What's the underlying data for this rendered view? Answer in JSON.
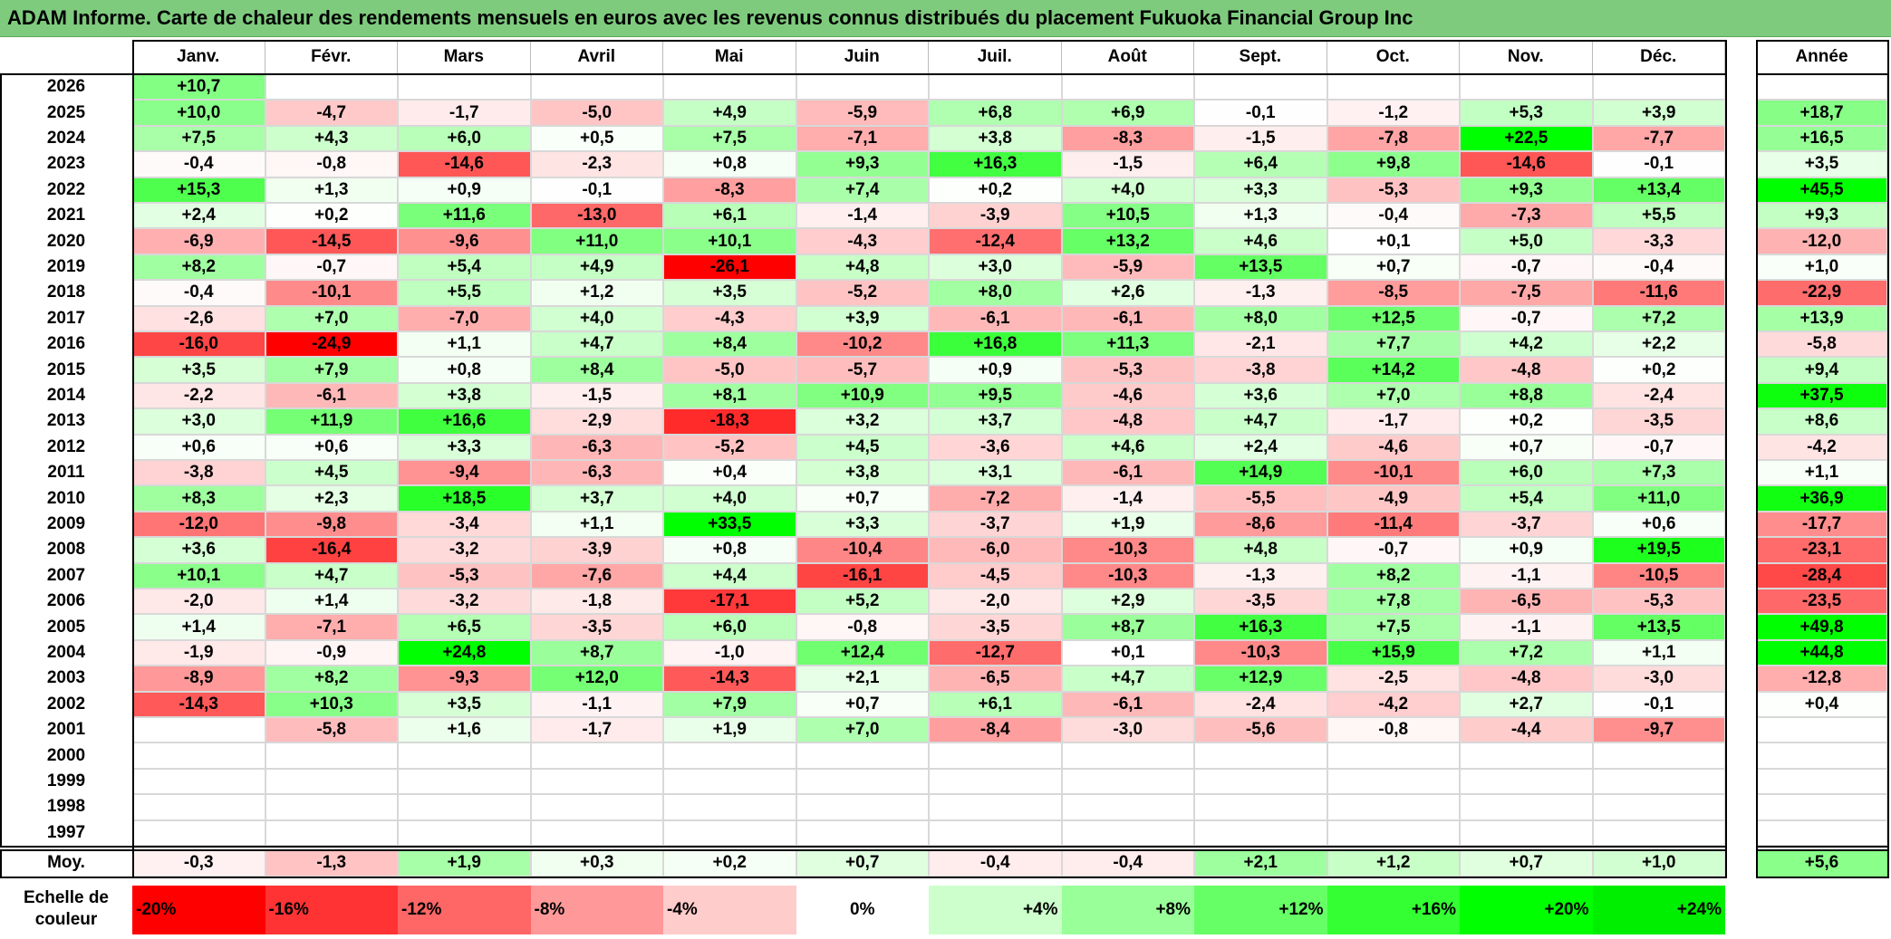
{
  "title": "ADAM Informe. Carte de chaleur des rendements mensuels en euros avec les revenus connus distribués du placement Fukuoka Financial Group Inc",
  "chart_data": {
    "type": "heatmap",
    "months": [
      "Janv.",
      "Févr.",
      "Mars",
      "Avril",
      "Mai",
      "Juin",
      "Juil.",
      "Août",
      "Sept.",
      "Oct.",
      "Nov.",
      "Déc."
    ],
    "year_header": "Année",
    "rows": [
      {
        "year": "2026",
        "m": [
          "+10,7",
          null,
          null,
          null,
          null,
          null,
          null,
          null,
          null,
          null,
          null,
          null
        ],
        "y": null
      },
      {
        "year": "2025",
        "m": [
          "+10,0",
          "-4,7",
          "-1,7",
          "-5,0",
          "+4,9",
          "-5,9",
          "+6,8",
          "+6,9",
          "-0,1",
          "-1,2",
          "+5,3",
          "+3,9"
        ],
        "y": "+18,7"
      },
      {
        "year": "2024",
        "m": [
          "+7,5",
          "+4,3",
          "+6,0",
          "+0,5",
          "+7,5",
          "-7,1",
          "+3,8",
          "-8,3",
          "-1,5",
          "-7,8",
          "+22,5",
          "-7,7"
        ],
        "y": "+16,5"
      },
      {
        "year": "2023",
        "m": [
          "-0,4",
          "-0,8",
          "-14,6",
          "-2,3",
          "+0,8",
          "+9,3",
          "+16,3",
          "-1,5",
          "+6,4",
          "+9,8",
          "-14,6",
          "-0,1"
        ],
        "y": "+3,5"
      },
      {
        "year": "2022",
        "m": [
          "+15,3",
          "+1,3",
          "+0,9",
          "-0,1",
          "-8,3",
          "+7,4",
          "+0,2",
          "+4,0",
          "+3,3",
          "-5,3",
          "+9,3",
          "+13,4"
        ],
        "y": "+45,5"
      },
      {
        "year": "2021",
        "m": [
          "+2,4",
          "+0,2",
          "+11,6",
          "-13,0",
          "+6,1",
          "-1,4",
          "-3,9",
          "+10,5",
          "+1,3",
          "-0,4",
          "-7,3",
          "+5,5"
        ],
        "y": "+9,3"
      },
      {
        "year": "2020",
        "m": [
          "-6,9",
          "-14,5",
          "-9,6",
          "+11,0",
          "+10,1",
          "-4,3",
          "-12,4",
          "+13,2",
          "+4,6",
          "+0,1",
          "+5,0",
          "-3,3"
        ],
        "y": "-12,0"
      },
      {
        "year": "2019",
        "m": [
          "+8,2",
          "-0,7",
          "+5,4",
          "+4,9",
          "-26,1",
          "+4,8",
          "+3,0",
          "-5,9",
          "+13,5",
          "+0,7",
          "-0,7",
          "-0,4"
        ],
        "y": "+1,0"
      },
      {
        "year": "2018",
        "m": [
          "-0,4",
          "-10,1",
          "+5,5",
          "+1,2",
          "+3,5",
          "-5,2",
          "+8,0",
          "+2,6",
          "-1,3",
          "-8,5",
          "-7,5",
          "-11,6"
        ],
        "y": "-22,9"
      },
      {
        "year": "2017",
        "m": [
          "-2,6",
          "+7,0",
          "-7,0",
          "+4,0",
          "-4,3",
          "+3,9",
          "-6,1",
          "-6,1",
          "+8,0",
          "+12,5",
          "-0,7",
          "+7,2"
        ],
        "y": "+13,9"
      },
      {
        "year": "2016",
        "m": [
          "-16,0",
          "-24,9",
          "+1,1",
          "+4,7",
          "+8,4",
          "-10,2",
          "+16,8",
          "+11,3",
          "-2,1",
          "+7,7",
          "+4,2",
          "+2,2"
        ],
        "y": "-5,8"
      },
      {
        "year": "2015",
        "m": [
          "+3,5",
          "+7,9",
          "+0,8",
          "+8,4",
          "-5,0",
          "-5,7",
          "+0,9",
          "-5,3",
          "-3,8",
          "+14,2",
          "-4,8",
          "+0,2"
        ],
        "y": "+9,4"
      },
      {
        "year": "2014",
        "m": [
          "-2,2",
          "-6,1",
          "+3,8",
          "-1,5",
          "+8,1",
          "+10,9",
          "+9,5",
          "-4,6",
          "+3,6",
          "+7,0",
          "+8,8",
          "-2,4"
        ],
        "y": "+37,5"
      },
      {
        "year": "2013",
        "m": [
          "+3,0",
          "+11,9",
          "+16,6",
          "-2,9",
          "-18,3",
          "+3,2",
          "+3,7",
          "-4,8",
          "+4,7",
          "-1,7",
          "+0,2",
          "-3,5"
        ],
        "y": "+8,6"
      },
      {
        "year": "2012",
        "m": [
          "+0,6",
          "+0,6",
          "+3,3",
          "-6,3",
          "-5,2",
          "+4,5",
          "-3,6",
          "+4,6",
          "+2,4",
          "-4,6",
          "+0,7",
          "-0,7"
        ],
        "y": "-4,2"
      },
      {
        "year": "2011",
        "m": [
          "-3,8",
          "+4,5",
          "-9,4",
          "-6,3",
          "+0,4",
          "+3,8",
          "+3,1",
          "-6,1",
          "+14,9",
          "-10,1",
          "+6,0",
          "+7,3"
        ],
        "y": "+1,1"
      },
      {
        "year": "2010",
        "m": [
          "+8,3",
          "+2,3",
          "+18,5",
          "+3,7",
          "+4,0",
          "+0,7",
          "-7,2",
          "-1,4",
          "-5,5",
          "-4,9",
          "+5,4",
          "+11,0"
        ],
        "y": "+36,9"
      },
      {
        "year": "2009",
        "m": [
          "-12,0",
          "-9,8",
          "-3,4",
          "+1,1",
          "+33,5",
          "+3,3",
          "-3,7",
          "+1,9",
          "-8,6",
          "-11,4",
          "-3,7",
          "+0,6"
        ],
        "y": "-17,7"
      },
      {
        "year": "2008",
        "m": [
          "+3,6",
          "-16,4",
          "-3,2",
          "-3,9",
          "+0,8",
          "-10,4",
          "-6,0",
          "-10,3",
          "+4,8",
          "-0,7",
          "+0,9",
          "+19,5"
        ],
        "y": "-23,1"
      },
      {
        "year": "2007",
        "m": [
          "+10,1",
          "+4,7",
          "-5,3",
          "-7,6",
          "+4,4",
          "-16,1",
          "-4,5",
          "-10,3",
          "-1,3",
          "+8,2",
          "-1,1",
          "-10,5"
        ],
        "y": "-28,4"
      },
      {
        "year": "2006",
        "m": [
          "-2,0",
          "+1,4",
          "-3,2",
          "-1,8",
          "-17,1",
          "+5,2",
          "-2,0",
          "+2,9",
          "-3,5",
          "+7,8",
          "-6,5",
          "-5,3"
        ],
        "y": "-23,5"
      },
      {
        "year": "2005",
        "m": [
          "+1,4",
          "-7,1",
          "+6,5",
          "-3,5",
          "+6,0",
          "-0,8",
          "-3,5",
          "+8,7",
          "+16,3",
          "+7,5",
          "-1,1",
          "+13,5"
        ],
        "y": "+49,8"
      },
      {
        "year": "2004",
        "m": [
          "-1,9",
          "-0,9",
          "+24,8",
          "+8,7",
          "-1,0",
          "+12,4",
          "-12,7",
          "+0,1",
          "-10,3",
          "+15,9",
          "+7,2",
          "+1,1"
        ],
        "y": "+44,8"
      },
      {
        "year": "2003",
        "m": [
          "-8,9",
          "+8,2",
          "-9,3",
          "+12,0",
          "-14,3",
          "+2,1",
          "-6,5",
          "+4,7",
          "+12,9",
          "-2,5",
          "-4,8",
          "-3,0"
        ],
        "y": "-12,8"
      },
      {
        "year": "2002",
        "m": [
          "-14,3",
          "+10,3",
          "+3,5",
          "-1,1",
          "+7,9",
          "+0,7",
          "+6,1",
          "-6,1",
          "-2,4",
          "-4,2",
          "+2,7",
          "-0,1"
        ],
        "y": "+0,4"
      },
      {
        "year": "2001",
        "m": [
          null,
          "-5,8",
          "+1,6",
          "-1,7",
          "+1,9",
          "+7,0",
          "-8,4",
          "-3,0",
          "-5,6",
          "-0,8",
          "-4,4",
          "-9,7"
        ],
        "y": null
      },
      {
        "year": "2000",
        "m": [
          null,
          null,
          null,
          null,
          null,
          null,
          null,
          null,
          null,
          null,
          null,
          null
        ],
        "y": null
      },
      {
        "year": "1999",
        "m": [
          null,
          null,
          null,
          null,
          null,
          null,
          null,
          null,
          null,
          null,
          null,
          null
        ],
        "y": null
      },
      {
        "year": "1998",
        "m": [
          null,
          null,
          null,
          null,
          null,
          null,
          null,
          null,
          null,
          null,
          null,
          null
        ],
        "y": null
      },
      {
        "year": "1997",
        "m": [
          null,
          null,
          null,
          null,
          null,
          null,
          null,
          null,
          null,
          null,
          null,
          null
        ],
        "y": null
      }
    ],
    "average": {
      "label": "Moy.",
      "m": [
        "-0,3",
        "-1,3",
        "+1,9",
        "+0,3",
        "+0,2",
        "+0,7",
        "-0,4",
        "-0,4",
        "+2,1",
        "+1,2",
        "+0,7",
        "+1,0"
      ],
      "y": "+5,6"
    },
    "color_scale": {
      "label": "Echelle de couleur",
      "steps": [
        {
          "text": "-20%",
          "value": -20,
          "color": "#ff0000"
        },
        {
          "text": "-16%",
          "value": -16,
          "color": "#ff3333"
        },
        {
          "text": "-12%",
          "value": -12,
          "color": "#ff6666"
        },
        {
          "text": "-8%",
          "value": -8,
          "color": "#ff9999"
        },
        {
          "text": "-4%",
          "value": -4,
          "color": "#ffcccc"
        },
        {
          "text": "0%",
          "value": 0,
          "color": "#ffffff"
        },
        {
          "text": "+4%",
          "value": 4,
          "color": "#ccffcc"
        },
        {
          "text": "+8%",
          "value": 8,
          "color": "#99ff99"
        },
        {
          "text": "+12%",
          "value": 12,
          "color": "#66ff66"
        },
        {
          "text": "+16%",
          "value": 16,
          "color": "#33ff33"
        },
        {
          "text": "+20%",
          "value": 20,
          "color": "#00ff00"
        },
        {
          "text": "+24%",
          "value": 24,
          "color": "#00ee00"
        }
      ]
    }
  }
}
